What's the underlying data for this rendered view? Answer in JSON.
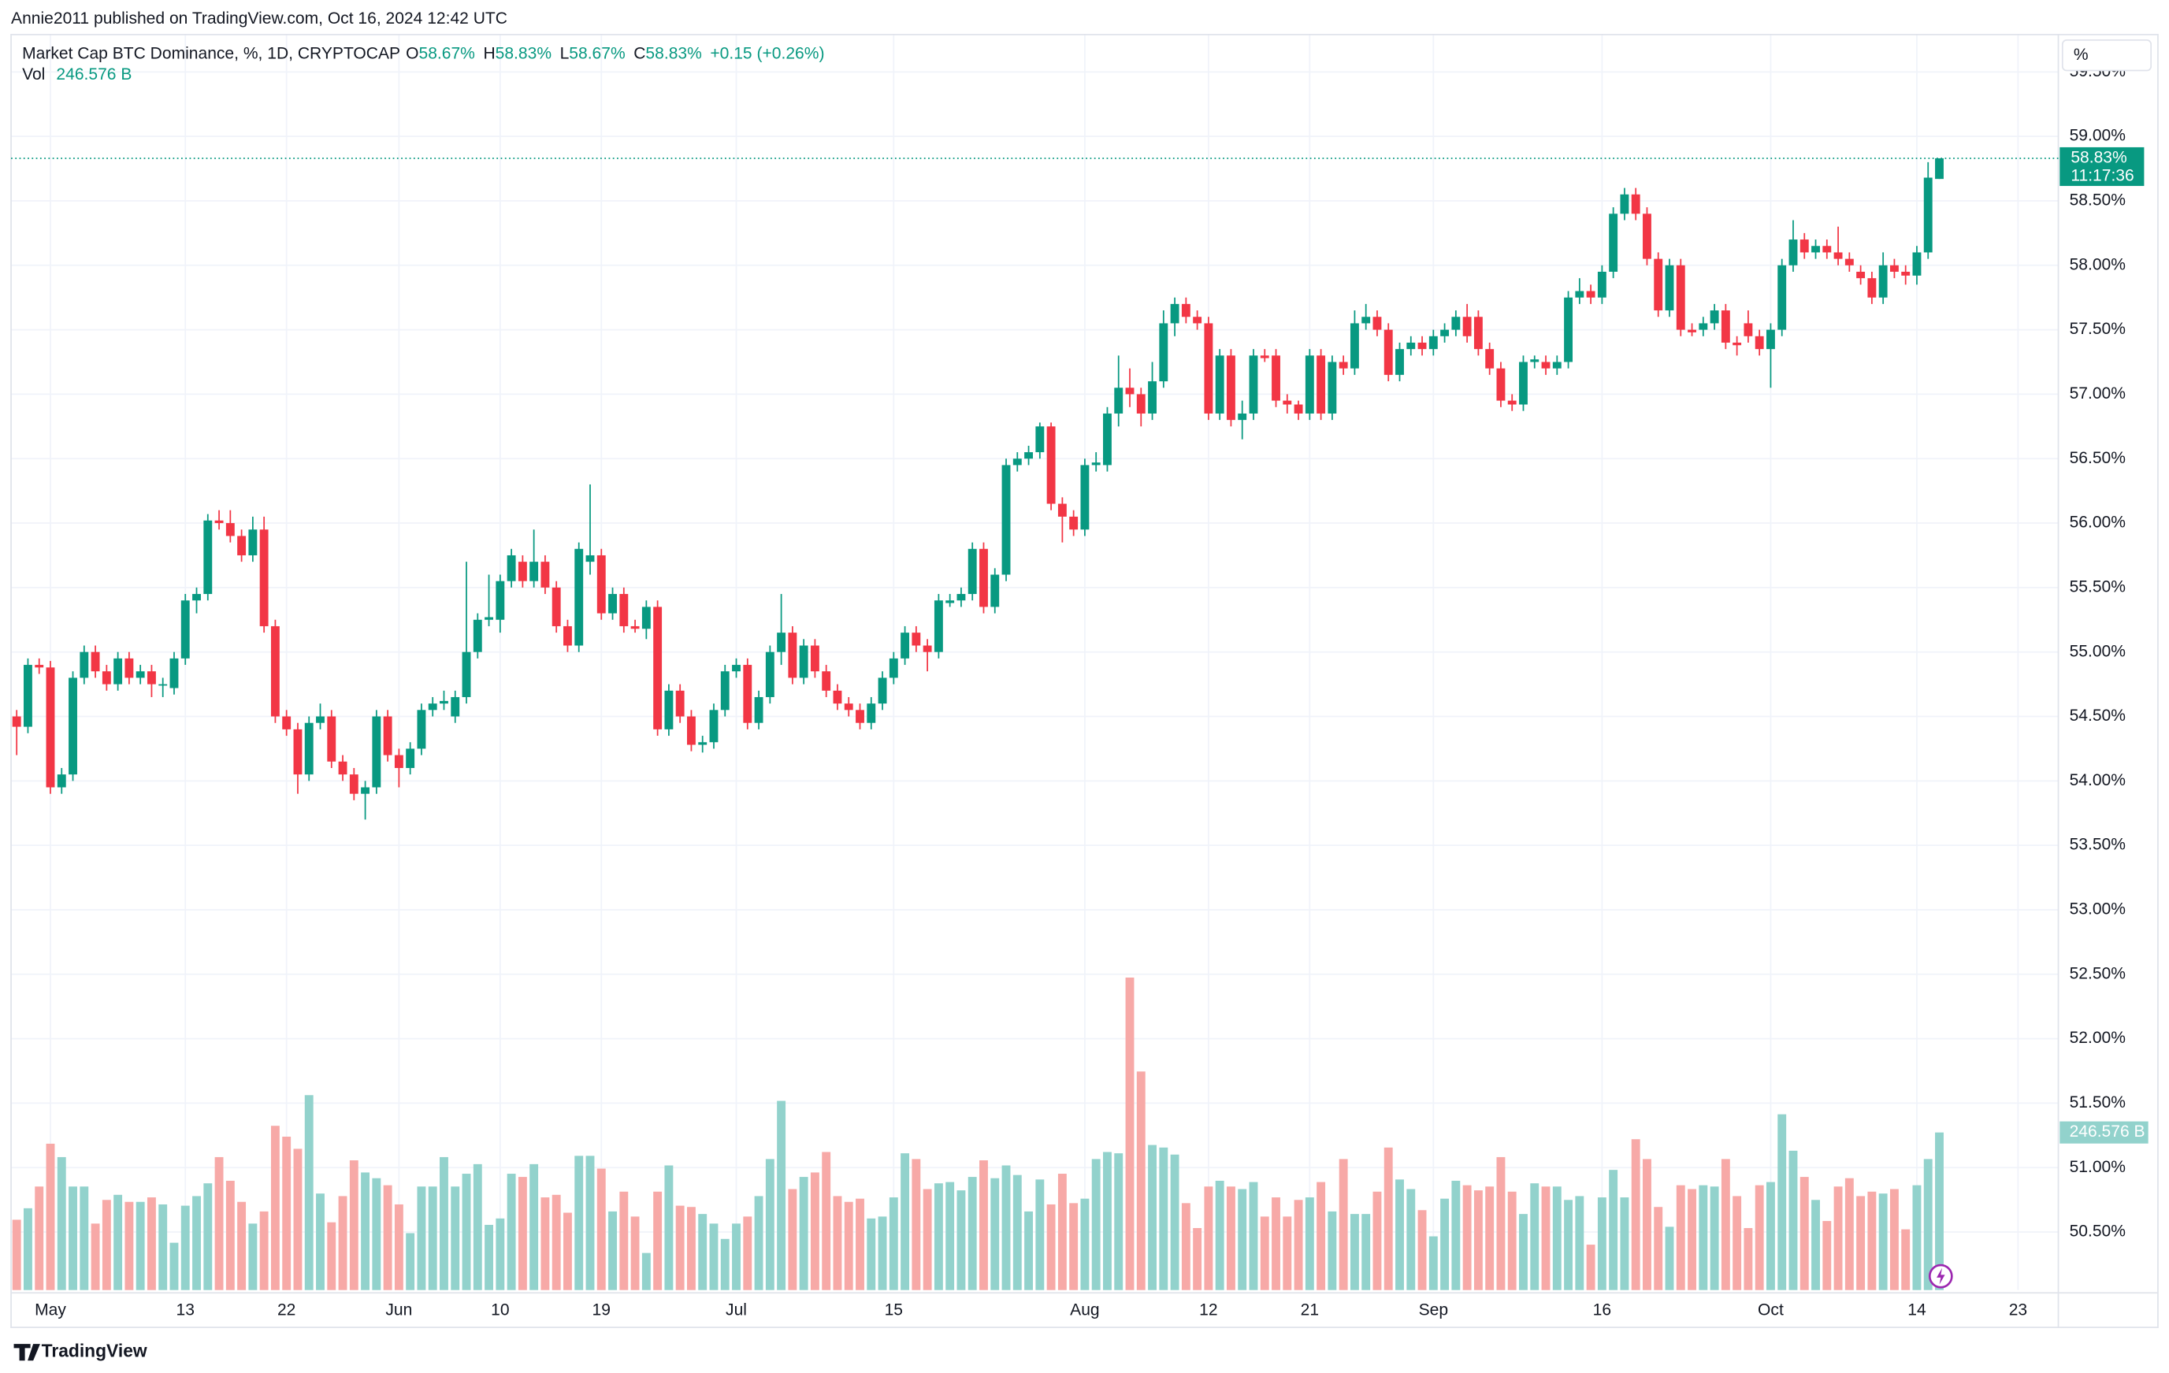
{
  "header": {
    "publisher": "Annie2011 published on TradingView.com, Oct 16, 2024 12:42 UTC"
  },
  "chart_data": {
    "type": "candlestick",
    "title": "Market Cap BTC Dominance, %, 1D, CRYPTOCAP",
    "legend": {
      "o_label": "O",
      "o": "58.67%",
      "h_label": "H",
      "h": "58.83%",
      "l_label": "L",
      "l": "58.67%",
      "c_label": "C",
      "c": "58.83%",
      "change": "+0.15 (+0.26%)"
    },
    "x": [
      "2024-04-28",
      "2024-04-29",
      "2024-04-30",
      "2024-05-01",
      "2024-05-02",
      "2024-05-03",
      "2024-05-04",
      "2024-05-05",
      "2024-05-06",
      "2024-05-07",
      "2024-05-08",
      "2024-05-09",
      "2024-05-10",
      "2024-05-11",
      "2024-05-12",
      "2024-05-13",
      "2024-05-14",
      "2024-05-15",
      "2024-05-16",
      "2024-05-17",
      "2024-05-18",
      "2024-05-19",
      "2024-05-20",
      "2024-05-21",
      "2024-05-22",
      "2024-05-23",
      "2024-05-24",
      "2024-05-25",
      "2024-05-26",
      "2024-05-27",
      "2024-05-28",
      "2024-05-29",
      "2024-05-30",
      "2024-05-31",
      "2024-06-01",
      "2024-06-02",
      "2024-06-03",
      "2024-06-04",
      "2024-06-05",
      "2024-06-06",
      "2024-06-07",
      "2024-06-08",
      "2024-06-09",
      "2024-06-10",
      "2024-06-11",
      "2024-06-12",
      "2024-06-13",
      "2024-06-14",
      "2024-06-15",
      "2024-06-16",
      "2024-06-17",
      "2024-06-18",
      "2024-06-19",
      "2024-06-20",
      "2024-06-21",
      "2024-06-22",
      "2024-06-23",
      "2024-06-24",
      "2024-06-25",
      "2024-06-26",
      "2024-06-27",
      "2024-06-28",
      "2024-06-29",
      "2024-06-30",
      "2024-07-01",
      "2024-07-02",
      "2024-07-03",
      "2024-07-04",
      "2024-07-05",
      "2024-07-06",
      "2024-07-07",
      "2024-07-08",
      "2024-07-09",
      "2024-07-10",
      "2024-07-11",
      "2024-07-12",
      "2024-07-13",
      "2024-07-14",
      "2024-07-15",
      "2024-07-16",
      "2024-07-17",
      "2024-07-18",
      "2024-07-19",
      "2024-07-20",
      "2024-07-21",
      "2024-07-22",
      "2024-07-23",
      "2024-07-24",
      "2024-07-25",
      "2024-07-26",
      "2024-07-27",
      "2024-07-28",
      "2024-07-29",
      "2024-07-30",
      "2024-07-31",
      "2024-08-01",
      "2024-08-02",
      "2024-08-03",
      "2024-08-04",
      "2024-08-05",
      "2024-08-06",
      "2024-08-07",
      "2024-08-08",
      "2024-08-09",
      "2024-08-10",
      "2024-08-11",
      "2024-08-12",
      "2024-08-13",
      "2024-08-14",
      "2024-08-15",
      "2024-08-16",
      "2024-08-17",
      "2024-08-18",
      "2024-08-19",
      "2024-08-20",
      "2024-08-21",
      "2024-08-22",
      "2024-08-23",
      "2024-08-24",
      "2024-08-25",
      "2024-08-26",
      "2024-08-27",
      "2024-08-28",
      "2024-08-29",
      "2024-08-30",
      "2024-08-31",
      "2024-09-01",
      "2024-09-02",
      "2024-09-03",
      "2024-09-04",
      "2024-09-05",
      "2024-09-06",
      "2024-09-07",
      "2024-09-08",
      "2024-09-09",
      "2024-09-10",
      "2024-09-11",
      "2024-09-12",
      "2024-09-13",
      "2024-09-14",
      "2024-09-15",
      "2024-09-16",
      "2024-09-17",
      "2024-09-18",
      "2024-09-19",
      "2024-09-20",
      "2024-09-21",
      "2024-09-22",
      "2024-09-23",
      "2024-09-24",
      "2024-09-25",
      "2024-09-26",
      "2024-09-27",
      "2024-09-28",
      "2024-09-29",
      "2024-09-30",
      "2024-10-01",
      "2024-10-02",
      "2024-10-03",
      "2024-10-04",
      "2024-10-05",
      "2024-10-06",
      "2024-10-07",
      "2024-10-08",
      "2024-10-09",
      "2024-10-10",
      "2024-10-11",
      "2024-10-12",
      "2024-10-13",
      "2024-10-14",
      "2024-10-15",
      "2024-10-16"
    ],
    "open": [
      54.5,
      54.42,
      54.9,
      54.88,
      53.95,
      54.05,
      54.8,
      55.0,
      54.85,
      54.75,
      54.95,
      54.8,
      54.85,
      54.75,
      54.72,
      54.95,
      55.4,
      55.45,
      56.02,
      56.0,
      55.9,
      55.75,
      55.95,
      55.2,
      54.5,
      54.4,
      54.05,
      54.45,
      54.5,
      54.15,
      54.05,
      53.9,
      53.95,
      54.5,
      54.2,
      54.1,
      54.25,
      54.55,
      54.6,
      54.5,
      54.65,
      55.0,
      55.25,
      55.25,
      55.55,
      55.7,
      55.55,
      55.7,
      55.5,
      55.2,
      55.05,
      55.7,
      55.75,
      55.3,
      55.45,
      55.2,
      55.18,
      55.35,
      54.4,
      54.7,
      54.5,
      54.28,
      54.3,
      54.55,
      54.85,
      54.9,
      54.45,
      54.65,
      55.0,
      55.15,
      54.8,
      55.05,
      54.85,
      54.7,
      54.6,
      54.55,
      54.45,
      54.6,
      54.8,
      54.95,
      55.15,
      55.05,
      55.0,
      55.38,
      55.4,
      55.45,
      55.8,
      55.35,
      55.6,
      56.45,
      56.5,
      56.55,
      56.75,
      56.15,
      56.05,
      55.95,
      56.45,
      56.45,
      56.85,
      57.05,
      57.0,
      56.85,
      57.1,
      57.55,
      57.7,
      57.6,
      57.55,
      56.85,
      57.3,
      56.8,
      56.85,
      57.3,
      57.3,
      56.95,
      56.92,
      56.85,
      57.3,
      56.85,
      57.25,
      57.2,
      57.55,
      57.6,
      57.5,
      57.15,
      57.35,
      57.4,
      57.35,
      57.45,
      57.5,
      57.6,
      57.6,
      57.35,
      57.2,
      56.95,
      56.92,
      57.25,
      57.25,
      57.2,
      57.25,
      57.75,
      57.8,
      57.75,
      57.95,
      58.4,
      58.55,
      58.4,
      58.05,
      57.65,
      58.0,
      57.5,
      57.5,
      57.55,
      57.65,
      57.4,
      57.55,
      57.45,
      57.35,
      57.5,
      58.0,
      58.2,
      58.1,
      58.15,
      58.1,
      58.05,
      57.95,
      57.9,
      57.75,
      58.0,
      57.95,
      57.92,
      58.1,
      58.67
    ],
    "high": [
      54.55,
      54.95,
      54.95,
      54.93,
      54.1,
      54.85,
      55.05,
      55.05,
      54.9,
      55.0,
      55.0,
      54.9,
      54.9,
      54.8,
      55.0,
      55.45,
      55.5,
      56.07,
      56.1,
      56.1,
      55.95,
      56.05,
      56.05,
      55.25,
      54.55,
      54.45,
      54.5,
      54.6,
      54.55,
      54.2,
      54.1,
      54.0,
      54.55,
      54.55,
      54.25,
      54.3,
      54.6,
      54.65,
      54.7,
      54.7,
      55.7,
      55.3,
      55.6,
      55.6,
      55.8,
      55.75,
      55.95,
      55.75,
      55.55,
      55.25,
      55.85,
      56.3,
      55.8,
      55.5,
      55.5,
      55.25,
      55.4,
      55.4,
      54.75,
      54.75,
      54.55,
      54.35,
      54.6,
      54.9,
      54.95,
      54.95,
      54.7,
      55.05,
      55.45,
      55.2,
      55.1,
      55.1,
      54.9,
      54.75,
      54.65,
      54.6,
      54.65,
      54.85,
      55.0,
      55.2,
      55.2,
      55.1,
      55.45,
      55.45,
      55.5,
      55.85,
      55.85,
      55.65,
      56.5,
      56.55,
      56.6,
      56.78,
      56.78,
      56.2,
      56.1,
      56.5,
      56.55,
      56.9,
      57.3,
      57.2,
      57.05,
      57.25,
      57.65,
      57.75,
      57.75,
      57.65,
      57.6,
      57.35,
      57.35,
      56.95,
      57.35,
      57.35,
      57.35,
      57.0,
      56.95,
      57.35,
      57.35,
      57.3,
      57.3,
      57.65,
      57.7,
      57.65,
      57.55,
      57.4,
      57.45,
      57.45,
      57.5,
      57.55,
      57.65,
      57.7,
      57.65,
      57.4,
      57.25,
      57.0,
      57.3,
      57.3,
      57.3,
      57.3,
      57.8,
      57.9,
      57.85,
      58.0,
      58.45,
      58.6,
      58.6,
      58.45,
      58.1,
      58.05,
      58.05,
      57.55,
      57.6,
      57.7,
      57.7,
      57.45,
      57.65,
      57.5,
      57.55,
      58.05,
      58.35,
      58.25,
      58.2,
      58.2,
      58.3,
      58.1,
      58.0,
      57.95,
      58.1,
      58.05,
      58.0,
      58.15,
      58.8,
      58.83
    ],
    "low": [
      54.2,
      54.37,
      54.83,
      53.9,
      53.9,
      54.0,
      54.75,
      54.8,
      54.7,
      54.7,
      54.75,
      54.75,
      54.65,
      54.65,
      54.67,
      54.9,
      55.3,
      55.4,
      55.95,
      55.85,
      55.7,
      55.7,
      55.15,
      54.45,
      54.35,
      53.9,
      54.0,
      54.4,
      54.1,
      54.0,
      53.85,
      53.7,
      53.9,
      54.15,
      53.95,
      54.05,
      54.2,
      54.5,
      54.55,
      54.45,
      54.6,
      54.95,
      55.2,
      55.15,
      55.5,
      55.5,
      55.5,
      55.45,
      55.15,
      55.0,
      55.0,
      55.6,
      55.25,
      55.25,
      55.15,
      55.15,
      55.1,
      54.35,
      54.35,
      54.45,
      54.23,
      54.22,
      54.25,
      54.5,
      54.8,
      54.4,
      54.4,
      54.6,
      54.9,
      54.75,
      54.75,
      54.8,
      54.65,
      54.55,
      54.5,
      54.4,
      54.4,
      54.55,
      54.75,
      54.9,
      55.0,
      54.85,
      54.95,
      55.35,
      55.35,
      55.4,
      55.3,
      55.3,
      55.55,
      56.4,
      56.45,
      56.5,
      56.1,
      55.85,
      55.9,
      55.9,
      56.4,
      56.4,
      56.75,
      56.9,
      56.75,
      56.8,
      57.05,
      57.45,
      57.55,
      57.5,
      56.8,
      56.8,
      56.75,
      56.65,
      56.8,
      57.25,
      56.9,
      56.85,
      56.8,
      56.8,
      56.8,
      56.8,
      57.15,
      57.15,
      57.5,
      57.45,
      57.1,
      57.1,
      57.3,
      57.3,
      57.3,
      57.4,
      57.45,
      57.4,
      57.3,
      57.15,
      56.9,
      56.87,
      56.87,
      57.2,
      57.15,
      57.15,
      57.2,
      57.7,
      57.7,
      57.7,
      57.9,
      58.35,
      58.35,
      58.0,
      57.6,
      57.6,
      57.45,
      57.45,
      57.45,
      57.5,
      57.35,
      57.3,
      57.4,
      57.3,
      57.05,
      57.45,
      57.95,
      58.05,
      58.05,
      58.05,
      58.0,
      57.95,
      57.85,
      57.7,
      57.7,
      57.9,
      57.85,
      57.85,
      58.05,
      58.67
    ],
    "close": [
      54.42,
      54.9,
      54.88,
      53.95,
      54.05,
      54.8,
      55.0,
      54.85,
      54.75,
      54.95,
      54.8,
      54.85,
      54.75,
      54.75,
      54.95,
      55.4,
      55.45,
      56.02,
      56.0,
      55.9,
      55.75,
      55.95,
      55.2,
      54.5,
      54.4,
      54.05,
      54.45,
      54.5,
      54.15,
      54.05,
      53.9,
      53.95,
      54.5,
      54.2,
      54.1,
      54.25,
      54.55,
      54.6,
      54.62,
      54.65,
      55.0,
      55.25,
      55.27,
      55.55,
      55.75,
      55.55,
      55.7,
      55.5,
      55.2,
      55.05,
      55.8,
      55.75,
      55.3,
      55.45,
      55.2,
      55.18,
      55.35,
      54.4,
      54.7,
      54.5,
      54.28,
      54.3,
      54.55,
      54.85,
      54.9,
      54.45,
      54.65,
      55.0,
      55.15,
      54.8,
      55.05,
      54.85,
      54.7,
      54.6,
      54.55,
      54.45,
      54.6,
      54.8,
      54.95,
      55.15,
      55.05,
      55.0,
      55.4,
      55.4,
      55.45,
      55.8,
      55.35,
      55.6,
      56.45,
      56.5,
      56.55,
      56.75,
      56.15,
      56.05,
      55.95,
      56.45,
      56.47,
      56.85,
      57.05,
      57.0,
      56.85,
      57.1,
      57.55,
      57.7,
      57.6,
      57.55,
      56.85,
      57.3,
      56.8,
      56.85,
      57.3,
      57.28,
      56.95,
      56.92,
      56.85,
      57.3,
      56.85,
      57.25,
      57.2,
      57.55,
      57.6,
      57.5,
      57.15,
      57.35,
      57.4,
      57.35,
      57.45,
      57.5,
      57.6,
      57.45,
      57.35,
      57.2,
      56.95,
      56.92,
      57.25,
      57.27,
      57.2,
      57.25,
      57.75,
      57.8,
      57.75,
      57.95,
      58.4,
      58.55,
      58.4,
      58.05,
      57.65,
      58.0,
      57.5,
      57.48,
      57.55,
      57.65,
      57.4,
      57.38,
      57.45,
      57.35,
      57.5,
      58.0,
      58.2,
      58.1,
      58.15,
      58.1,
      58.05,
      58.0,
      57.9,
      57.75,
      58.0,
      57.95,
      57.92,
      58.1,
      58.68,
      58.83
    ],
    "up_color": "#089981",
    "down_color": "#f23645",
    "volume": {
      "name": "Vol",
      "last_label": "246.576 B",
      "up_color": "#92d2cc",
      "down_color": "#f7a9a7",
      "values": [
        110,
        128,
        162,
        229,
        208,
        162,
        162,
        104,
        141,
        149,
        138,
        138,
        145,
        134,
        74,
        132,
        147,
        167,
        208,
        171,
        138,
        104,
        123,
        257,
        240,
        221,
        305,
        151,
        106,
        147,
        203,
        184,
        175,
        164,
        134,
        89,
        162,
        162,
        208,
        162,
        182,
        197,
        102,
        112,
        182,
        177,
        197,
        145,
        149,
        121,
        210,
        210,
        190,
        123,
        154,
        115,
        58,
        154,
        195,
        132,
        130,
        119,
        104,
        80,
        104,
        115,
        147,
        205,
        296,
        158,
        177,
        184,
        216,
        147,
        138,
        143,
        112,
        115,
        145,
        214,
        205,
        158,
        167,
        169,
        156,
        177,
        203,
        175,
        195,
        180,
        123,
        173,
        134,
        182,
        136,
        143,
        205,
        216,
        214,
        489,
        342,
        227,
        223,
        212,
        136,
        97,
        162,
        171,
        162,
        158,
        169,
        115,
        145,
        115,
        141,
        145,
        169,
        123,
        205,
        119,
        119,
        154,
        223,
        173,
        158,
        125,
        84,
        143,
        171,
        164,
        156,
        162,
        208,
        154,
        119,
        167,
        162,
        162,
        141,
        147,
        71,
        145,
        188,
        145,
        236,
        205,
        130,
        99,
        164,
        158,
        164,
        162,
        205,
        147,
        97,
        164,
        169,
        275,
        218,
        177,
        141,
        108,
        162,
        175,
        147,
        154,
        151,
        158,
        95,
        164,
        205,
        246.576
      ]
    },
    "last_price_label": "58.83%",
    "countdown": "11:17:36",
    "scale_button": "%",
    "ylim": [
      50.05,
      59.79
    ],
    "yticks": [
      {
        "value": 50.5,
        "label": "50.50%"
      },
      {
        "value": 51,
        "label": "51.00%"
      },
      {
        "value": 51.5,
        "label": "51.50%"
      },
      {
        "value": 52,
        "label": "52.00%"
      },
      {
        "value": 52.5,
        "label": "52.50%"
      },
      {
        "value": 53,
        "label": "53.00%"
      },
      {
        "value": 53.5,
        "label": "53.50%"
      },
      {
        "value": 54,
        "label": "54.00%"
      },
      {
        "value": 54.5,
        "label": "54.50%"
      },
      {
        "value": 55,
        "label": "55.00%"
      },
      {
        "value": 55.5,
        "label": "55.50%"
      },
      {
        "value": 56,
        "label": "56.00%"
      },
      {
        "value": 56.5,
        "label": "56.50%"
      },
      {
        "value": 57,
        "label": "57.00%"
      },
      {
        "value": 57.5,
        "label": "57.50%"
      },
      {
        "value": 58,
        "label": "58.00%"
      },
      {
        "value": 58.5,
        "label": "58.50%"
      },
      {
        "value": 59,
        "label": "59.00%"
      },
      {
        "value": 59.5,
        "label": "59.50%"
      }
    ],
    "xlim": [
      "2024-04-27T12:00:00Z",
      "2024-10-26T14:00:00Z"
    ],
    "xticks": [
      {
        "value": "2024-05-01",
        "label": "May"
      },
      {
        "value": "2024-05-13",
        "label": "13"
      },
      {
        "value": "2024-05-22",
        "label": "22"
      },
      {
        "value": "2024-06-01",
        "label": "Jun"
      },
      {
        "value": "2024-06-10",
        "label": "10"
      },
      {
        "value": "2024-06-19",
        "label": "19"
      },
      {
        "value": "2024-07-01",
        "label": "Jul"
      },
      {
        "value": "2024-07-15",
        "label": "15"
      },
      {
        "value": "2024-08-01",
        "label": "Aug"
      },
      {
        "value": "2024-08-12",
        "label": "12"
      },
      {
        "value": "2024-08-21",
        "label": "21"
      },
      {
        "value": "2024-09-01",
        "label": "Sep"
      },
      {
        "value": "2024-09-16",
        "label": "16"
      },
      {
        "value": "2024-10-01",
        "label": "Oct"
      },
      {
        "value": "2024-10-14",
        "label": "14"
      },
      {
        "value": "2024-10-23",
        "label": "23"
      }
    ],
    "grid": true
  },
  "footer": {
    "brand": "TradingView"
  }
}
